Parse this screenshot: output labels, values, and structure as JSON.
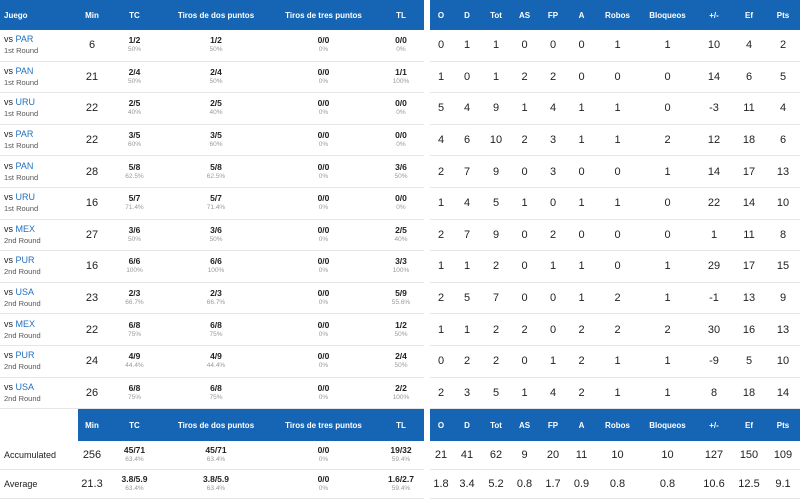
{
  "header": {
    "game": "Juego",
    "min": "Min",
    "tc": "TC",
    "t2": "Tiros de dos puntos",
    "t3": "Tiros de tres puntos",
    "tl": "TL",
    "o": "O",
    "d": "D",
    "tot": "Tot",
    "as": "AS",
    "fp": "FP",
    "a": "A",
    "robos": "Robos",
    "bloqueos": "Bloqueos",
    "pm": "+/-",
    "ef": "Ef",
    "pts": "Pts"
  },
  "games": [
    {
      "vs": "vs",
      "opp": "PAR",
      "round": "1st Round",
      "min": "6",
      "tc": "1/2",
      "tc_pct": "50%",
      "t2": "1/2",
      "t2_pct": "50%",
      "t3": "0/0",
      "t3_pct": "0%",
      "tl": "0/0",
      "tl_pct": "0%",
      "o": "0",
      "d": "1",
      "tot": "1",
      "as": "0",
      "fp": "0",
      "a": "0",
      "robos": "1",
      "bloqueos": "1",
      "pm": "10",
      "ef": "4",
      "pts": "2"
    },
    {
      "vs": "vs",
      "opp": "PAN",
      "round": "1st Round",
      "min": "21",
      "tc": "2/4",
      "tc_pct": "50%",
      "t2": "2/4",
      "t2_pct": "50%",
      "t3": "0/0",
      "t3_pct": "0%",
      "tl": "1/1",
      "tl_pct": "100%",
      "o": "1",
      "d": "0",
      "tot": "1",
      "as": "2",
      "fp": "2",
      "a": "0",
      "robos": "0",
      "bloqueos": "0",
      "pm": "14",
      "ef": "6",
      "pts": "5"
    },
    {
      "vs": "vs",
      "opp": "URU",
      "round": "1st Round",
      "min": "22",
      "tc": "2/5",
      "tc_pct": "40%",
      "t2": "2/5",
      "t2_pct": "40%",
      "t3": "0/0",
      "t3_pct": "0%",
      "tl": "0/0",
      "tl_pct": "0%",
      "o": "5",
      "d": "4",
      "tot": "9",
      "as": "1",
      "fp": "4",
      "a": "1",
      "robos": "1",
      "bloqueos": "0",
      "pm": "-3",
      "ef": "11",
      "pts": "4"
    },
    {
      "vs": "vs",
      "opp": "PAR",
      "round": "1st Round",
      "min": "22",
      "tc": "3/5",
      "tc_pct": "60%",
      "t2": "3/5",
      "t2_pct": "60%",
      "t3": "0/0",
      "t3_pct": "0%",
      "tl": "0/0",
      "tl_pct": "0%",
      "o": "4",
      "d": "6",
      "tot": "10",
      "as": "2",
      "fp": "3",
      "a": "1",
      "robos": "1",
      "bloqueos": "2",
      "pm": "12",
      "ef": "18",
      "pts": "6"
    },
    {
      "vs": "vs",
      "opp": "PAN",
      "round": "1st Round",
      "min": "28",
      "tc": "5/8",
      "tc_pct": "62.5%",
      "t2": "5/8",
      "t2_pct": "62.5%",
      "t3": "0/0",
      "t3_pct": "0%",
      "tl": "3/6",
      "tl_pct": "50%",
      "o": "2",
      "d": "7",
      "tot": "9",
      "as": "0",
      "fp": "3",
      "a": "0",
      "robos": "0",
      "bloqueos": "1",
      "pm": "14",
      "ef": "17",
      "pts": "13"
    },
    {
      "vs": "vs",
      "opp": "URU",
      "round": "1st Round",
      "min": "16",
      "tc": "5/7",
      "tc_pct": "71.4%",
      "t2": "5/7",
      "t2_pct": "71.4%",
      "t3": "0/0",
      "t3_pct": "0%",
      "tl": "0/0",
      "tl_pct": "0%",
      "o": "1",
      "d": "4",
      "tot": "5",
      "as": "1",
      "fp": "0",
      "a": "1",
      "robos": "1",
      "bloqueos": "0",
      "pm": "22",
      "ef": "14",
      "pts": "10"
    },
    {
      "vs": "vs",
      "opp": "MEX",
      "round": "2nd Round",
      "min": "27",
      "tc": "3/6",
      "tc_pct": "50%",
      "t2": "3/6",
      "t2_pct": "50%",
      "t3": "0/0",
      "t3_pct": "0%",
      "tl": "2/5",
      "tl_pct": "40%",
      "o": "2",
      "d": "7",
      "tot": "9",
      "as": "0",
      "fp": "2",
      "a": "0",
      "robos": "0",
      "bloqueos": "0",
      "pm": "1",
      "ef": "11",
      "pts": "8"
    },
    {
      "vs": "vs",
      "opp": "PUR",
      "round": "2nd Round",
      "min": "16",
      "tc": "6/6",
      "tc_pct": "100%",
      "t2": "6/6",
      "t2_pct": "100%",
      "t3": "0/0",
      "t3_pct": "0%",
      "tl": "3/3",
      "tl_pct": "100%",
      "o": "1",
      "d": "1",
      "tot": "2",
      "as": "0",
      "fp": "1",
      "a": "1",
      "robos": "0",
      "bloqueos": "1",
      "pm": "29",
      "ef": "17",
      "pts": "15"
    },
    {
      "vs": "vs",
      "opp": "USA",
      "round": "2nd Round",
      "min": "23",
      "tc": "2/3",
      "tc_pct": "66.7%",
      "t2": "2/3",
      "t2_pct": "66.7%",
      "t3": "0/0",
      "t3_pct": "0%",
      "tl": "5/9",
      "tl_pct": "55.6%",
      "o": "2",
      "d": "5",
      "tot": "7",
      "as": "0",
      "fp": "0",
      "a": "1",
      "robos": "2",
      "bloqueos": "1",
      "pm": "-1",
      "ef": "13",
      "pts": "9"
    },
    {
      "vs": "vs",
      "opp": "MEX",
      "round": "2nd Round",
      "min": "22",
      "tc": "6/8",
      "tc_pct": "75%",
      "t2": "6/8",
      "t2_pct": "75%",
      "t3": "0/0",
      "t3_pct": "0%",
      "tl": "1/2",
      "tl_pct": "50%",
      "o": "1",
      "d": "1",
      "tot": "2",
      "as": "2",
      "fp": "0",
      "a": "2",
      "robos": "2",
      "bloqueos": "2",
      "pm": "30",
      "ef": "16",
      "pts": "13"
    },
    {
      "vs": "vs",
      "opp": "PUR",
      "round": "2nd Round",
      "min": "24",
      "tc": "4/9",
      "tc_pct": "44.4%",
      "t2": "4/9",
      "t2_pct": "44.4%",
      "t3": "0/0",
      "t3_pct": "0%",
      "tl": "2/4",
      "tl_pct": "50%",
      "o": "0",
      "d": "2",
      "tot": "2",
      "as": "0",
      "fp": "1",
      "a": "2",
      "robos": "1",
      "bloqueos": "1",
      "pm": "-9",
      "ef": "5",
      "pts": "10"
    },
    {
      "vs": "vs",
      "opp": "USA",
      "round": "2nd Round",
      "min": "26",
      "tc": "6/8",
      "tc_pct": "75%",
      "t2": "6/8",
      "t2_pct": "75%",
      "t3": "0/0",
      "t3_pct": "0%",
      "tl": "2/2",
      "tl_pct": "100%",
      "o": "2",
      "d": "3",
      "tot": "5",
      "as": "1",
      "fp": "4",
      "a": "2",
      "robos": "1",
      "bloqueos": "1",
      "pm": "8",
      "ef": "18",
      "pts": "14"
    }
  ],
  "totals": [
    {
      "label": "Accumulated",
      "min": "256",
      "tc": "45/71",
      "tc_pct": "63.4%",
      "t2": "45/71",
      "t2_pct": "63.4%",
      "t3": "0/0",
      "t3_pct": "0%",
      "tl": "19/32",
      "tl_pct": "59.4%",
      "o": "21",
      "d": "41",
      "tot": "62",
      "as": "9",
      "fp": "20",
      "a": "11",
      "robos": "10",
      "bloqueos": "10",
      "pm": "127",
      "ef": "150",
      "pts": "109"
    },
    {
      "label": "Average",
      "min": "21.3",
      "tc": "3.8/5.9",
      "tc_pct": "63.4%",
      "t2": "3.8/5.9",
      "t2_pct": "63.4%",
      "t3": "0/0",
      "t3_pct": "0%",
      "tl": "1.6/2.7",
      "tl_pct": "59.4%",
      "o": "1.8",
      "d": "3.4",
      "tot": "5.2",
      "as": "0.8",
      "fp": "1.7",
      "a": "0.9",
      "robos": "0.8",
      "bloqueos": "0.8",
      "pm": "10.6",
      "ef": "12.5",
      "pts": "9.1"
    }
  ],
  "colors": {
    "header_bg": "#1565b4",
    "link": "#1f6fbf"
  }
}
